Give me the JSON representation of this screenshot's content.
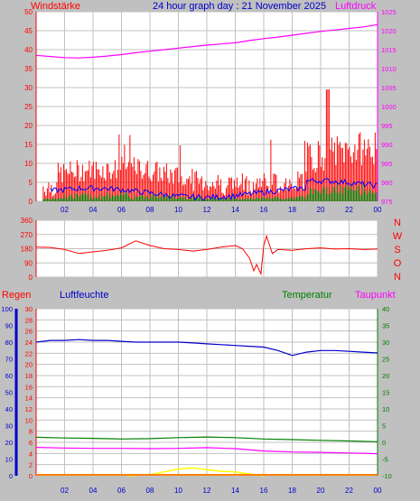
{
  "header": {
    "left_label": "Windstärke",
    "title": "24 hour graph day : 21 November 2025",
    "right_label": "Luftdruck"
  },
  "colors": {
    "background": "#c0c0c0",
    "plot_bg": "#ffffff",
    "grid": "#c0c0c0",
    "wind": "#ff0000",
    "wind_avg": "#0000ff",
    "wind_min": "#008000",
    "pressure": "#ff00ff",
    "direction": "#ff0000",
    "humidity": "#0000cc",
    "temperature": "#008000",
    "dewpoint": "#ff00ff",
    "rain": "#ff0000",
    "radiation": "#ffff00",
    "orange": "#ff8000"
  },
  "chart_data": [
    {
      "type": "bar",
      "name_key": "wind",
      "ylim": [
        0,
        50
      ],
      "y_ticks": [
        "0",
        "5",
        "10",
        "15",
        "20",
        "25",
        "30",
        "35",
        "40",
        "45",
        "50"
      ],
      "y2lim": [
        975,
        1025
      ],
      "y2_ticks": [
        "975",
        "980",
        "985",
        "990",
        "995",
        "1000",
        "1005",
        "1010",
        "1015",
        "1020",
        "1025"
      ],
      "x_ticks": [
        "02",
        "04",
        "06",
        "08",
        "10",
        "12",
        "14",
        "16",
        "18",
        "20",
        "22",
        "00"
      ],
      "pressure_points": [
        [
          0,
          1013.5
        ],
        [
          1,
          1013.2
        ],
        [
          2,
          1012.9
        ],
        [
          3,
          1012.8
        ],
        [
          4,
          1013.0
        ],
        [
          5,
          1013.3
        ],
        [
          6,
          1013.7
        ],
        [
          7,
          1014.2
        ],
        [
          8,
          1014.6
        ],
        [
          9,
          1015.0
        ],
        [
          10,
          1015.4
        ],
        [
          11,
          1015.8
        ],
        [
          12,
          1016.2
        ],
        [
          13,
          1016.5
        ],
        [
          14,
          1016.8
        ],
        [
          15,
          1017.4
        ],
        [
          16,
          1017.9
        ],
        [
          17,
          1018.3
        ],
        [
          18,
          1018.8
        ],
        [
          19,
          1019.3
        ],
        [
          20,
          1019.8
        ],
        [
          21,
          1020.2
        ],
        [
          22,
          1020.6
        ],
        [
          23,
          1021.0
        ],
        [
          24,
          1021.6
        ]
      ]
    },
    {
      "type": "line",
      "name_key": "direction",
      "ylim": [
        0,
        360
      ],
      "y_ticks": [
        "0",
        "90",
        "180",
        "270",
        "360"
      ],
      "dir_labels": [
        "N",
        "W",
        "S",
        "O",
        "N"
      ],
      "points": [
        [
          0,
          190
        ],
        [
          1,
          188
        ],
        [
          2,
          175
        ],
        [
          3,
          150
        ],
        [
          4,
          160
        ],
        [
          5,
          170
        ],
        [
          6,
          185
        ],
        [
          7,
          230
        ],
        [
          8,
          200
        ],
        [
          9,
          180
        ],
        [
          10,
          175
        ],
        [
          11,
          165
        ],
        [
          12,
          175
        ],
        [
          13,
          190
        ],
        [
          14,
          200
        ],
        [
          14.5,
          180
        ],
        [
          15,
          120
        ],
        [
          15.3,
          40
        ],
        [
          15.5,
          80
        ],
        [
          15.8,
          20
        ],
        [
          16,
          200
        ],
        [
          16.2,
          260
        ],
        [
          16.6,
          150
        ],
        [
          17,
          175
        ],
        [
          18,
          170
        ],
        [
          19,
          180
        ],
        [
          20,
          185
        ],
        [
          21,
          178
        ],
        [
          22,
          180
        ],
        [
          23,
          175
        ],
        [
          24,
          178
        ]
      ]
    },
    {
      "type": "line",
      "name_key": "multi",
      "left_labels": [
        "Regen",
        "Luftfeuchte"
      ],
      "right_labels": [
        "Temperatur",
        "Taupunkt"
      ],
      "humidity_ticks": [
        "0",
        "10",
        "20",
        "30",
        "40",
        "50",
        "60",
        "70",
        "80",
        "90",
        "100"
      ],
      "rain_ticks": [
        "0",
        "2",
        "4",
        "6",
        "8",
        "10",
        "12",
        "14",
        "16",
        "18",
        "20",
        "22",
        "24",
        "26",
        "28",
        "30"
      ],
      "temp_ticks": [
        "-10",
        "-5",
        "0",
        "5",
        "10",
        "15",
        "20",
        "25",
        "30",
        "35",
        "40"
      ],
      "x_ticks": [
        "02",
        "04",
        "06",
        "08",
        "10",
        "12",
        "14",
        "16",
        "18",
        "20",
        "22",
        "00"
      ],
      "humidity_points": [
        [
          0,
          80
        ],
        [
          1,
          81
        ],
        [
          2,
          81
        ],
        [
          3,
          81.5
        ],
        [
          4,
          81
        ],
        [
          5,
          81
        ],
        [
          6,
          80.5
        ],
        [
          7,
          80
        ],
        [
          8,
          80
        ],
        [
          9,
          80
        ],
        [
          10,
          80
        ],
        [
          11,
          79.5
        ],
        [
          12,
          79
        ],
        [
          13,
          78.5
        ],
        [
          14,
          78
        ],
        [
          15,
          77.5
        ],
        [
          16,
          77
        ],
        [
          17,
          75
        ],
        [
          18,
          72
        ],
        [
          19,
          74
        ],
        [
          20,
          75
        ],
        [
          21,
          75
        ],
        [
          22,
          74.5
        ],
        [
          23,
          74
        ],
        [
          24,
          73.5
        ]
      ],
      "temperature_points": [
        [
          0,
          1.5
        ],
        [
          2,
          1.3
        ],
        [
          4,
          1.2
        ],
        [
          6,
          1.0
        ],
        [
          8,
          1.1
        ],
        [
          10,
          1.4
        ],
        [
          12,
          1.6
        ],
        [
          14,
          1.4
        ],
        [
          16,
          1.0
        ],
        [
          18,
          0.8
        ],
        [
          20,
          0.6
        ],
        [
          22,
          0.4
        ],
        [
          24,
          0.2
        ]
      ],
      "dewpoint_points": [
        [
          0,
          -1.5
        ],
        [
          2,
          -1.7
        ],
        [
          4,
          -1.8
        ],
        [
          6,
          -1.8
        ],
        [
          8,
          -1.9
        ],
        [
          10,
          -1.8
        ],
        [
          12,
          -1.6
        ],
        [
          14,
          -1.9
        ],
        [
          16,
          -2.6
        ],
        [
          18,
          -2.9
        ],
        [
          20,
          -3.0
        ],
        [
          22,
          -3.2
        ],
        [
          24,
          -3.4
        ]
      ],
      "radiation_points": [
        [
          6.5,
          0
        ],
        [
          8,
          0.2
        ],
        [
          9,
          0.7
        ],
        [
          10,
          1.2
        ],
        [
          11,
          1.4
        ],
        [
          12,
          1.1
        ],
        [
          13,
          0.8
        ],
        [
          14,
          0.7
        ],
        [
          15,
          0.3
        ],
        [
          16,
          0
        ]
      ]
    }
  ]
}
